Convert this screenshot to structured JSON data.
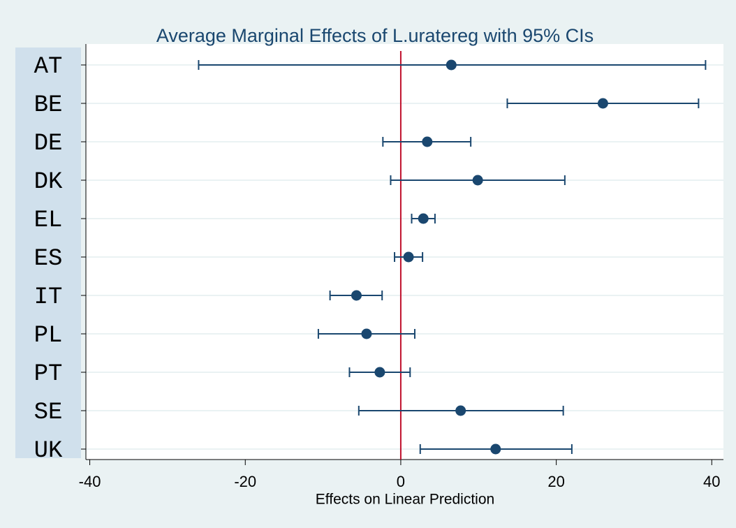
{
  "chart_data": {
    "type": "coefplot",
    "title": "Average Marginal Effects of L.uratereg with 95% CIs",
    "x_label": "Effects on Linear Prediction",
    "categories": [
      "AT",
      "BE",
      "DE",
      "DK",
      "EL",
      "ES",
      "IT",
      "PL",
      "PT",
      "SE",
      "UK"
    ],
    "values": [
      6.5,
      26.0,
      3.4,
      9.9,
      2.9,
      1.0,
      -5.7,
      -4.4,
      -2.7,
      7.7,
      12.2
    ],
    "ci_low": [
      -26.0,
      13.7,
      -2.3,
      -1.3,
      1.4,
      -0.8,
      -9.1,
      -10.6,
      -6.6,
      -5.4,
      2.5
    ],
    "ci_high": [
      39.2,
      38.3,
      9.0,
      21.1,
      4.4,
      2.8,
      -2.4,
      1.8,
      1.2,
      20.9,
      22.0
    ],
    "color": "#1a476f",
    "xlim": [
      -40.5,
      41.5
    ],
    "xticks": [
      -40,
      -20,
      0,
      20,
      40
    ],
    "reference_line": {
      "value": 0,
      "color": "#c0102c"
    },
    "grid": true
  }
}
